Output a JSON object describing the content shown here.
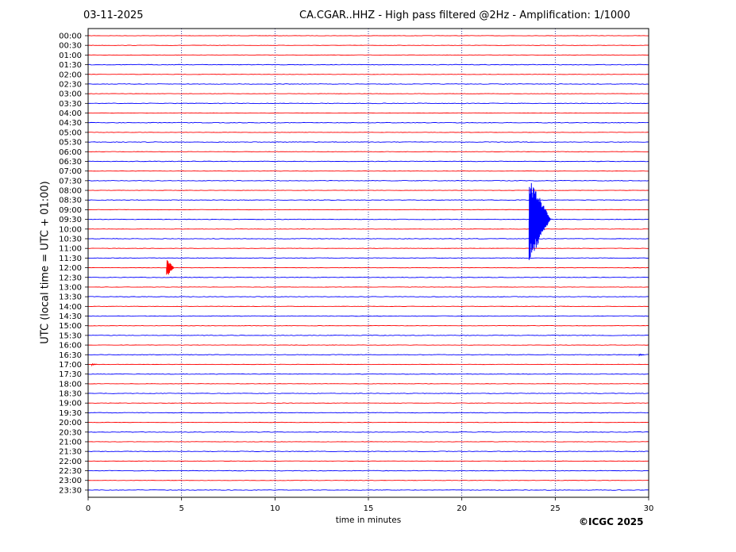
{
  "header": {
    "date": "03-11-2025",
    "title": "CA.CGAR..HHZ - High pass filtered @2Hz - Amplification: 1/1000"
  },
  "footer": {
    "copyright": "©ICGC 2025"
  },
  "chart_data": {
    "type": "line",
    "subtype": "helicorder",
    "xlabel": "time in minutes",
    "ylabel": "UTC (local time = UTC + 01:00)",
    "xlim": [
      0,
      30
    ],
    "x_ticks": [
      0,
      5,
      10,
      15,
      20,
      25,
      30
    ],
    "grid": "vertical dotted lines at each x tick",
    "colors": {
      "odd_trace": "#0000ff",
      "even_trace": "#ff0000",
      "grid": "#000080"
    },
    "rows": [
      "00:00",
      "00:30",
      "01:00",
      "01:30",
      "02:00",
      "02:30",
      "03:00",
      "03:30",
      "04:00",
      "04:30",
      "05:00",
      "05:30",
      "06:00",
      "06:30",
      "07:00",
      "07:30",
      "08:00",
      "08:30",
      "09:00",
      "09:30",
      "10:00",
      "10:30",
      "11:00",
      "11:30",
      "12:00",
      "12:30",
      "13:00",
      "13:30",
      "14:00",
      "14:30",
      "15:00",
      "15:30",
      "16:00",
      "16:30",
      "17:00",
      "17:30",
      "18:00",
      "18:30",
      "19:00",
      "19:30",
      "20:00",
      "20:30",
      "21:00",
      "21:30",
      "22:00",
      "22:30",
      "23:00",
      "23:30"
    ],
    "row_colors": [
      "red",
      "red",
      "red",
      "blue",
      "red",
      "blue",
      "red",
      "blue",
      "red",
      "blue",
      "red",
      "blue",
      "red",
      "blue",
      "red",
      "blue",
      "red",
      "blue",
      "red",
      "blue",
      "red",
      "blue",
      "red",
      "blue",
      "red",
      "blue",
      "red",
      "blue",
      "red",
      "blue",
      "red",
      "blue",
      "red",
      "blue",
      "red",
      "blue",
      "red",
      "blue",
      "red",
      "blue",
      "red",
      "blue",
      "red",
      "blue",
      "red",
      "blue",
      "red",
      "blue"
    ],
    "events": [
      {
        "row": "09:30",
        "x_minutes": 23.6,
        "color": "blue",
        "amplitude_rows": 4.5
      },
      {
        "row": "12:00",
        "x_minutes": 4.2,
        "color": "red",
        "amplitude_rows": 1.0
      },
      {
        "row": "16:30",
        "x_minutes": 29.5,
        "color": "blue",
        "amplitude_rows": 0.1
      },
      {
        "row": "17:00",
        "x_minutes": 0.2,
        "color": "red",
        "amplitude_rows": 0.1
      }
    ]
  }
}
